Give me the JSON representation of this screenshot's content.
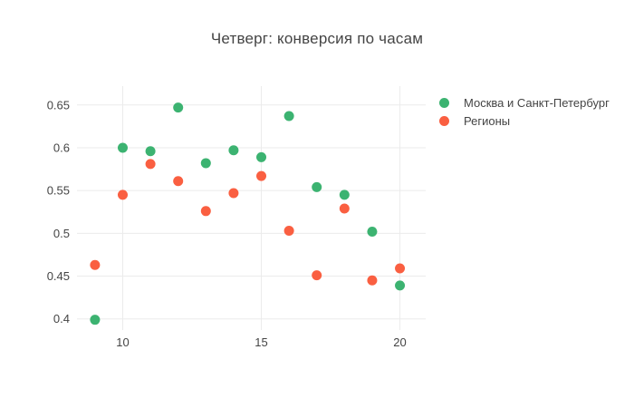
{
  "page": {
    "background": "#FFFFFF"
  },
  "chart_data": {
    "type": "scatter",
    "title": "Четверг: конверсия по часам",
    "xlabel": "",
    "ylabel": "",
    "x": [
      9,
      10,
      11,
      12,
      13,
      14,
      15,
      16,
      17,
      18,
      19,
      20
    ],
    "series": [
      {
        "name": "Москва и Санкт-Петербург",
        "color": "#3CB371",
        "values": [
          0.399,
          0.6,
          0.596,
          0.647,
          0.582,
          0.597,
          0.589,
          0.637,
          0.554,
          0.545,
          0.502,
          0.439
        ]
      },
      {
        "name": "Регионы",
        "color": "#FA5F41",
        "values": [
          0.463,
          0.545,
          0.581,
          0.561,
          0.526,
          0.547,
          0.567,
          0.503,
          0.451,
          0.529,
          0.445,
          0.459
        ]
      }
    ],
    "xlim": [
      8.35,
      20.93
    ],
    "ylim": [
      0.387,
      0.672
    ],
    "xticks": [
      10,
      15,
      20
    ],
    "xtick_labels": [
      "10",
      "15",
      "20"
    ],
    "yticks": [
      0.4,
      0.45,
      0.5,
      0.55,
      0.6,
      0.65
    ],
    "ytick_labels": [
      "0.4",
      "0.45",
      "0.5",
      "0.55",
      "0.6",
      "0.65"
    ],
    "grid": true,
    "legend_position": "right",
    "marker_radius": 5.5,
    "colors": {
      "grid": "#EBEBEB",
      "tick_text": "#444444",
      "title_text": "#444444",
      "plot_background": "#FFFFFF"
    }
  }
}
